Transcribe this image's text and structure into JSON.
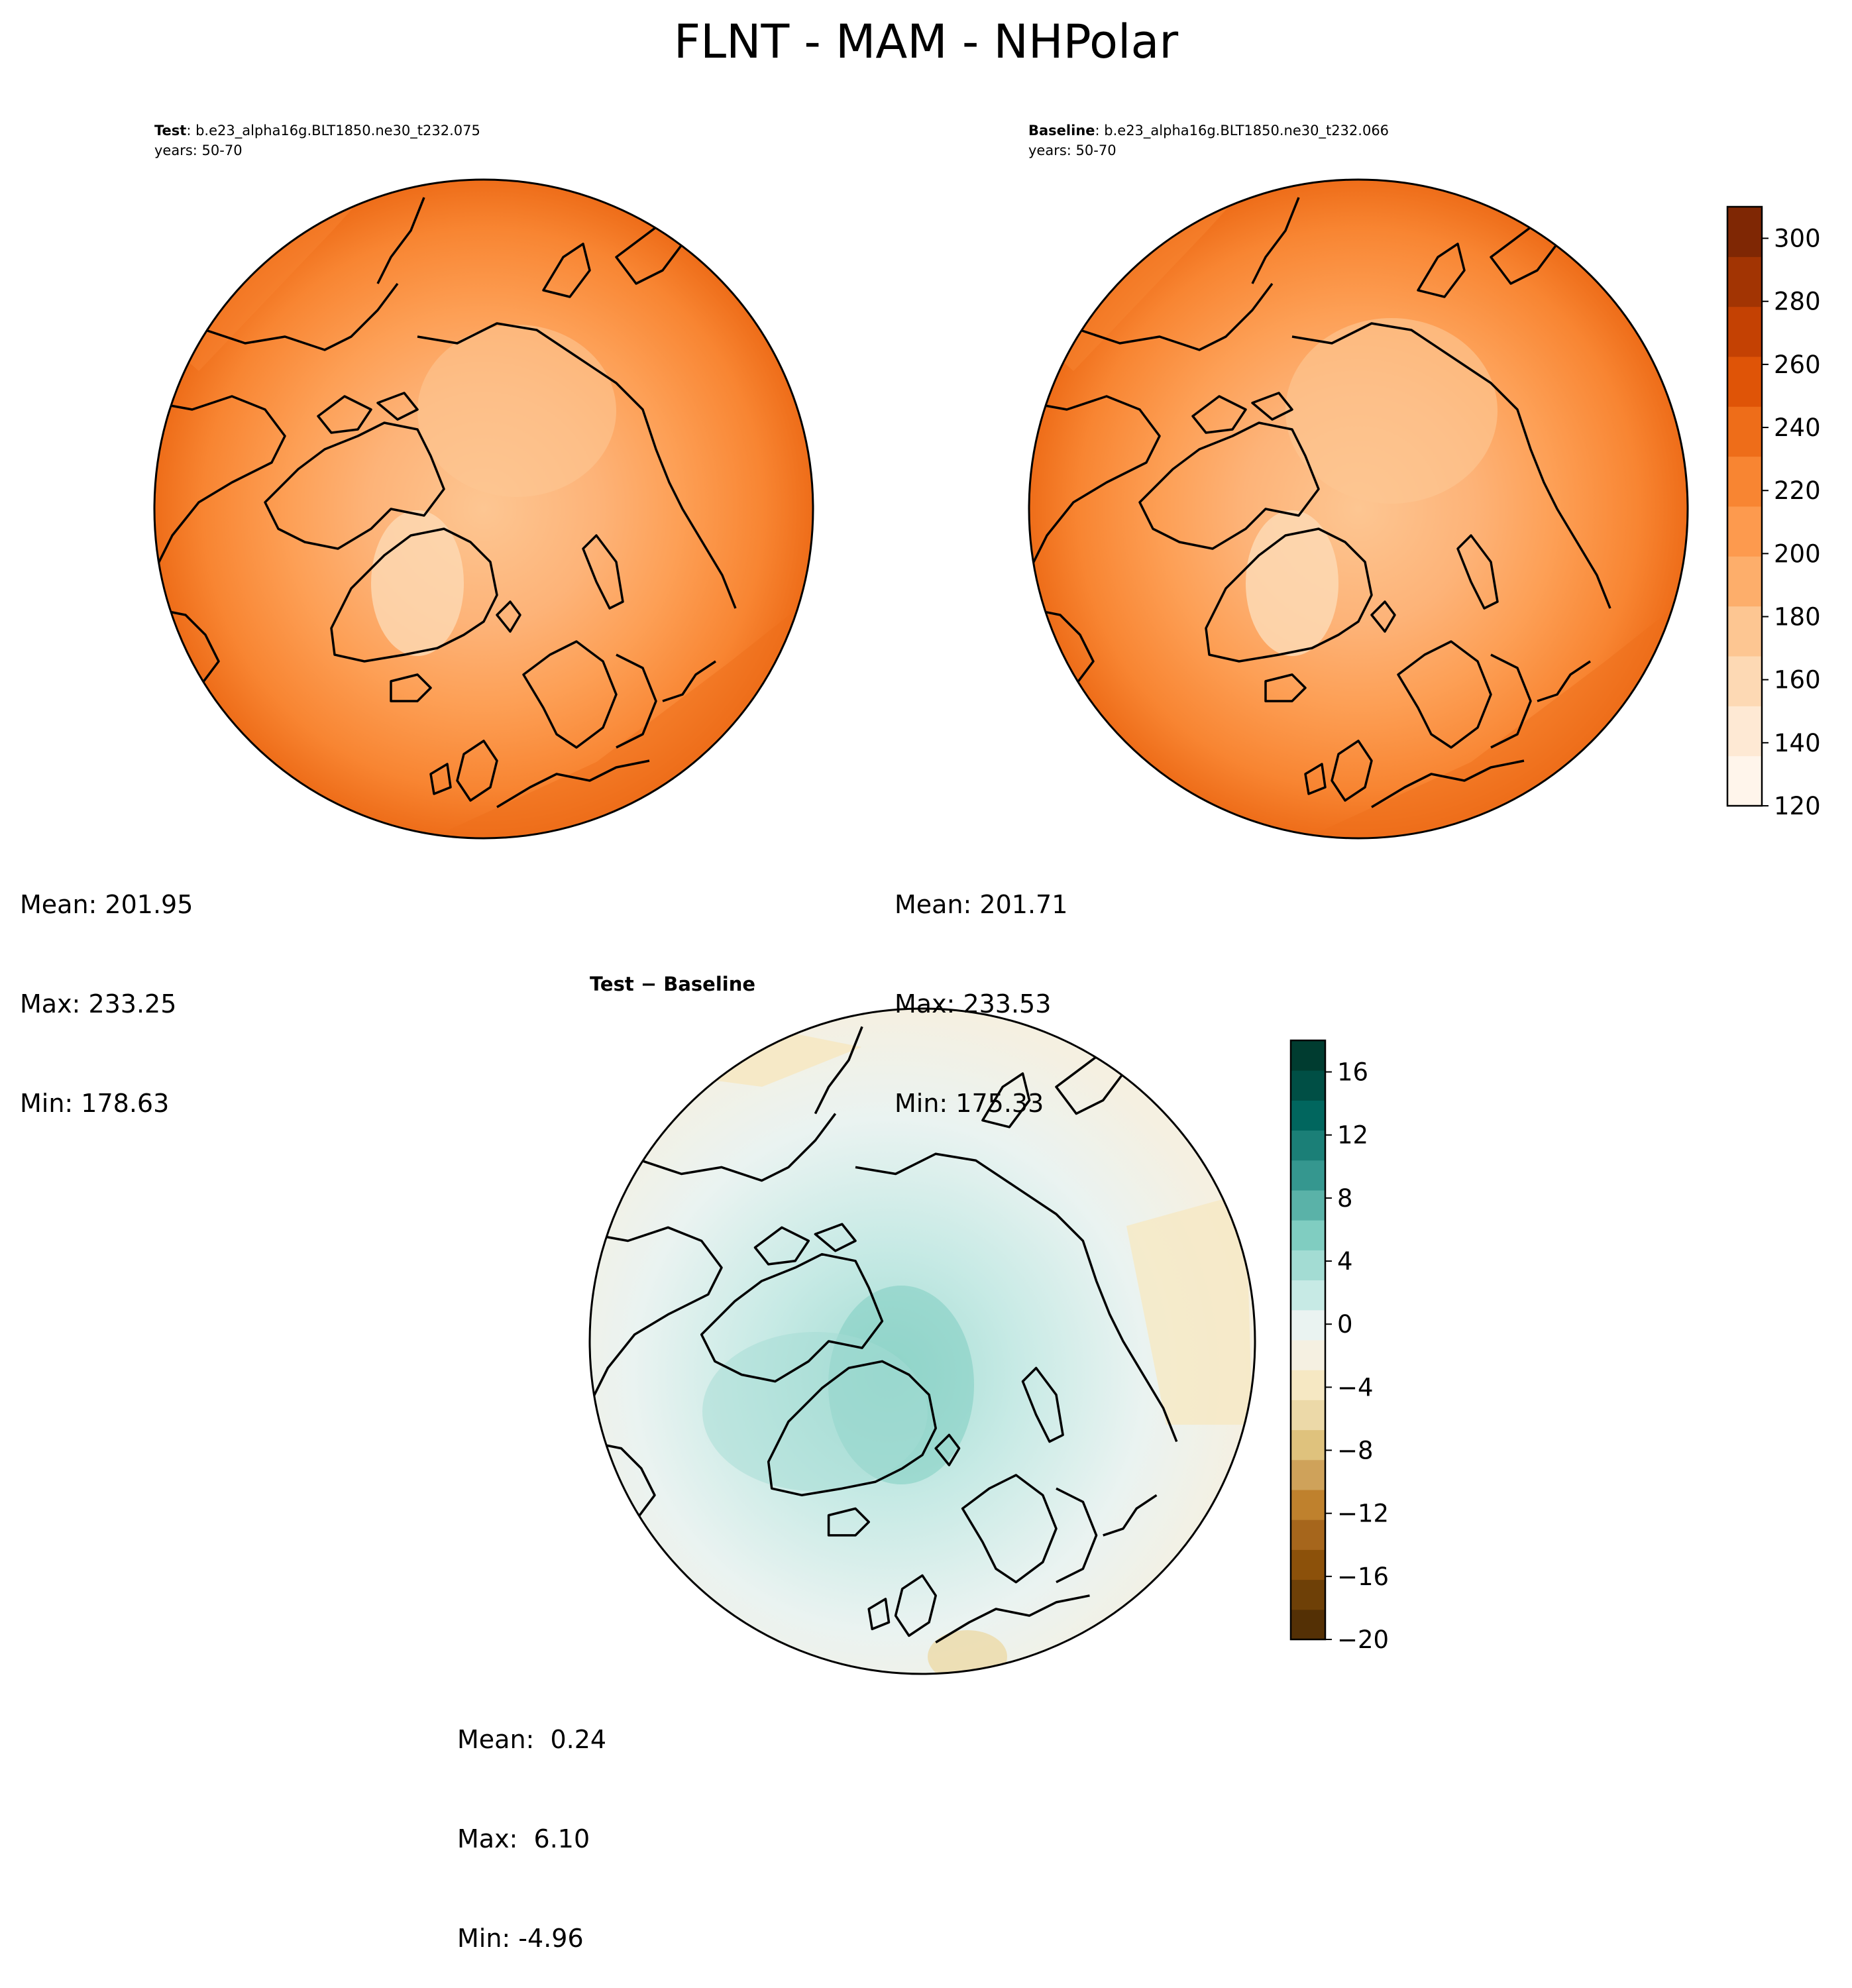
{
  "title": "FLNT - MAM - NHPolar",
  "panels": {
    "test": {
      "label_bold": "Test",
      "label_rest": ": b.e23_alpha16g.BLT1850.ne30_t232.075",
      "years": "years: 50-70",
      "stats": {
        "mean": "Mean: 201.95",
        "max": "Max: 233.25",
        "min": "Min: 178.63"
      }
    },
    "baseline": {
      "label_bold": "Baseline",
      "label_rest": ": b.e23_alpha16g.BLT1850.ne30_t232.066",
      "years": "years: 50-70",
      "stats": {
        "mean": "Mean: 201.71",
        "max": "Max: 233.53",
        "min": "Min: 175.33"
      }
    },
    "diff": {
      "label": "Test − Baseline",
      "stats": {
        "mean": "Mean:  0.24",
        "max": "Max:  6.10",
        "min": "Min: -4.96"
      }
    }
  },
  "colorbars": {
    "field": {
      "ticks": [
        "120",
        "140",
        "160",
        "180",
        "200",
        "220",
        "240",
        "260",
        "280",
        "300"
      ],
      "colors": [
        "#fff5eb",
        "#fee9d4",
        "#fdd9b4",
        "#fdc692",
        "#fdae6b",
        "#fd9a4e",
        "#f88532",
        "#ee6d19",
        "#df5407",
        "#c44103",
        "#a23403",
        "#7f2704"
      ]
    },
    "diff": {
      "ticks": [
        "−20",
        "−16",
        "−12",
        "−8",
        "−4",
        "0",
        "4",
        "8",
        "12",
        "16"
      ],
      "colors": [
        "#543005",
        "#6e4007",
        "#8c510a",
        "#a6661c",
        "#bf812d",
        "#cfa25a",
        "#dfc27d",
        "#ecd9a8",
        "#f6e8c3",
        "#f5f0e1",
        "#eaf3f1",
        "#c7eae5",
        "#a3dcd3",
        "#80cdc1",
        "#5ab2a8",
        "#35978f",
        "#1b7f77",
        "#01665e",
        "#004f45",
        "#003c30"
      ]
    }
  }
}
